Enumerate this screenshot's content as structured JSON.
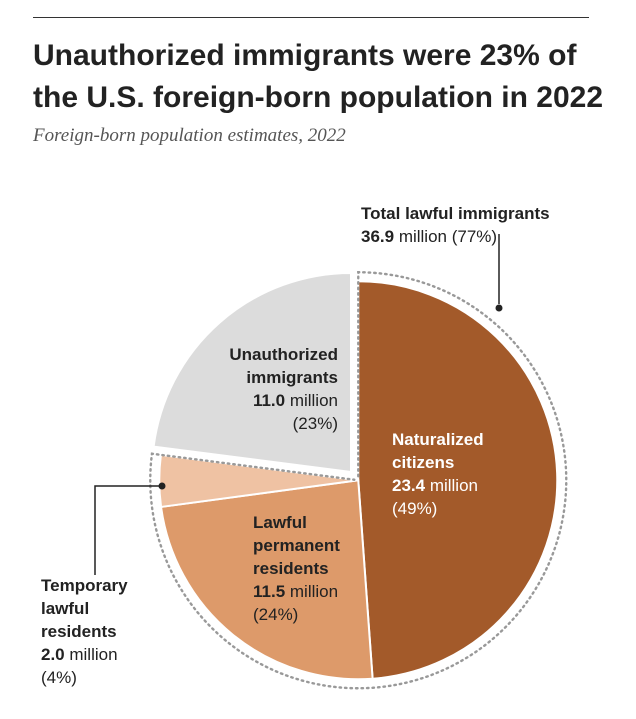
{
  "header": {
    "title": "Unauthorized immigrants were 23% of the U.S. foreign-born population in 2022",
    "subtitle": "Foreign-born population estimates, 2022"
  },
  "chart_data": {
    "type": "pie",
    "title": "Unauthorized immigrants were 23% of the U.S. foreign-born population in 2022",
    "subtitle": "Foreign-born population estimates, 2022",
    "unit": "million",
    "slices": [
      {
        "key": "naturalized",
        "name": "Naturalized citizens",
        "value": 23.4,
        "percent": 49,
        "color": "#a35a2a"
      },
      {
        "key": "permanent",
        "name": "Lawful permanent residents",
        "value": 11.5,
        "percent": 24,
        "color": "#dd9a6a"
      },
      {
        "key": "temporary",
        "name": "Temporary lawful residents",
        "value": 2.0,
        "percent": 4,
        "color": "#efc2a3"
      },
      {
        "key": "unauthorized",
        "name": "Unauthorized immigrants",
        "value": 11.0,
        "percent": 23,
        "color": "#dcdcdc"
      }
    ],
    "group": {
      "name": "Total lawful immigrants",
      "value": 36.9,
      "percent": 77,
      "members": [
        "naturalized",
        "permanent",
        "temporary"
      ]
    }
  },
  "labels": {
    "naturalized": {
      "l1": "Naturalized",
      "l2": "citizens",
      "value": "23.4",
      "unit": " million",
      "pct": "(49%)"
    },
    "permanent": {
      "l1": "Lawful",
      "l2": "permanent",
      "l3": "residents",
      "value": "11.5",
      "unit": " million",
      "pct": "(24%)"
    },
    "temporary": {
      "l1": "Temporary",
      "l2": "lawful",
      "l3": "residents",
      "value": "2.0",
      "unit": " million",
      "pct": "(4%)"
    },
    "unauthorized": {
      "l1": "Unauthorized",
      "l2": "immigrants",
      "value": "11.0",
      "unit": " million",
      "pct": "(23%)"
    },
    "total": {
      "l1": "Total lawful immigrants",
      "value": "36.9",
      "unit": " million",
      "pct": "(77%)"
    }
  }
}
